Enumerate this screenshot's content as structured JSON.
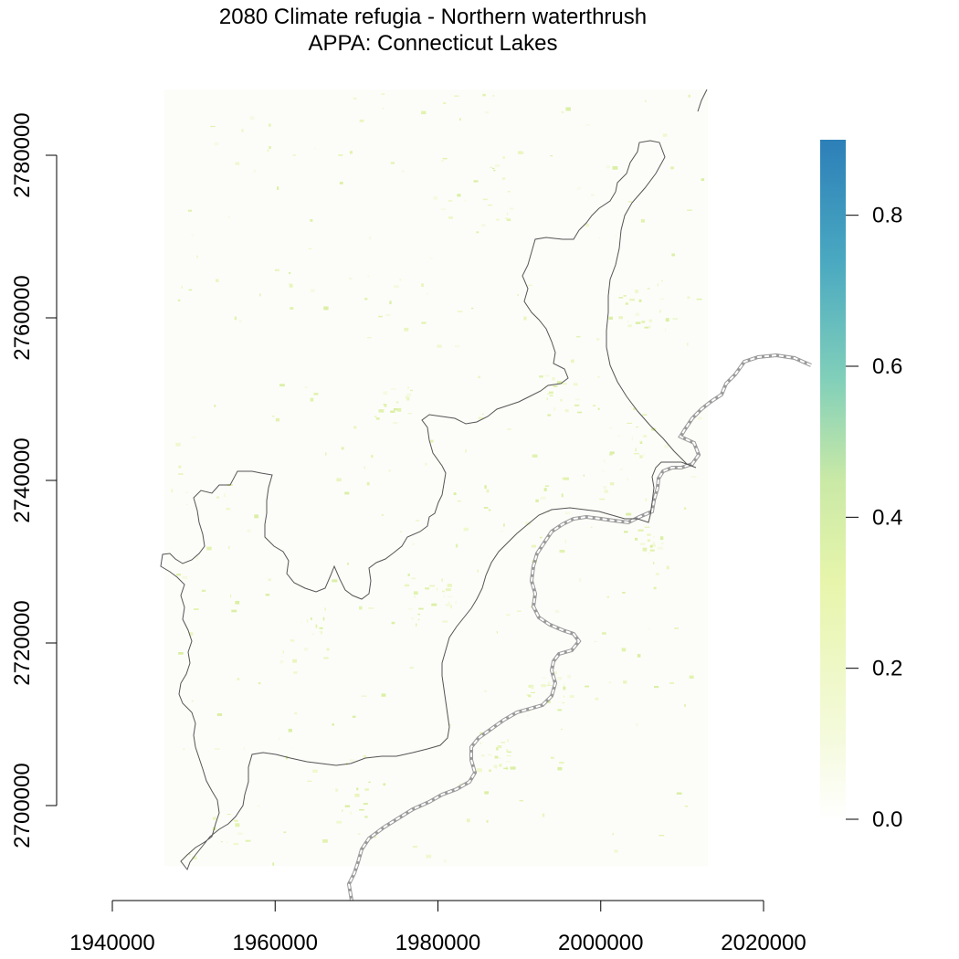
{
  "title": {
    "line1": "2080 Climate refugia - Northern waterthrush",
    "line2": "APPA: Connecticut Lakes"
  },
  "colors": {
    "background": "#ffffff",
    "boundary": "#555555",
    "border": "#9a9a9a",
    "ramp": [
      "#ffffff",
      "#f2f9d6",
      "#e6f5a8",
      "#c7e9a6",
      "#7ccdbb",
      "#41a6c4",
      "#2c7fb8"
    ]
  },
  "map": {
    "x_axis": {
      "range": [
        1940000,
        2020000
      ],
      "ticks": [
        1940000,
        1960000,
        1980000,
        2000000,
        2020000
      ],
      "labels": [
        "1940000",
        "1960000",
        "1980000",
        "2000000",
        "2020000"
      ]
    },
    "y_axis": {
      "range": [
        2700000,
        2780000
      ],
      "ticks": [
        2700000,
        2720000,
        2740000,
        2760000,
        2780000
      ],
      "labels": [
        "2700000",
        "2720000",
        "2740000",
        "2760000",
        "2780000"
      ]
    }
  },
  "legend": {
    "range": [
      0.0,
      0.9
    ],
    "ticks": [
      0.0,
      0.2,
      0.4,
      0.6,
      0.8
    ],
    "labels": [
      "0.0",
      "0.2",
      "0.4",
      "0.6",
      "0.8"
    ]
  }
}
